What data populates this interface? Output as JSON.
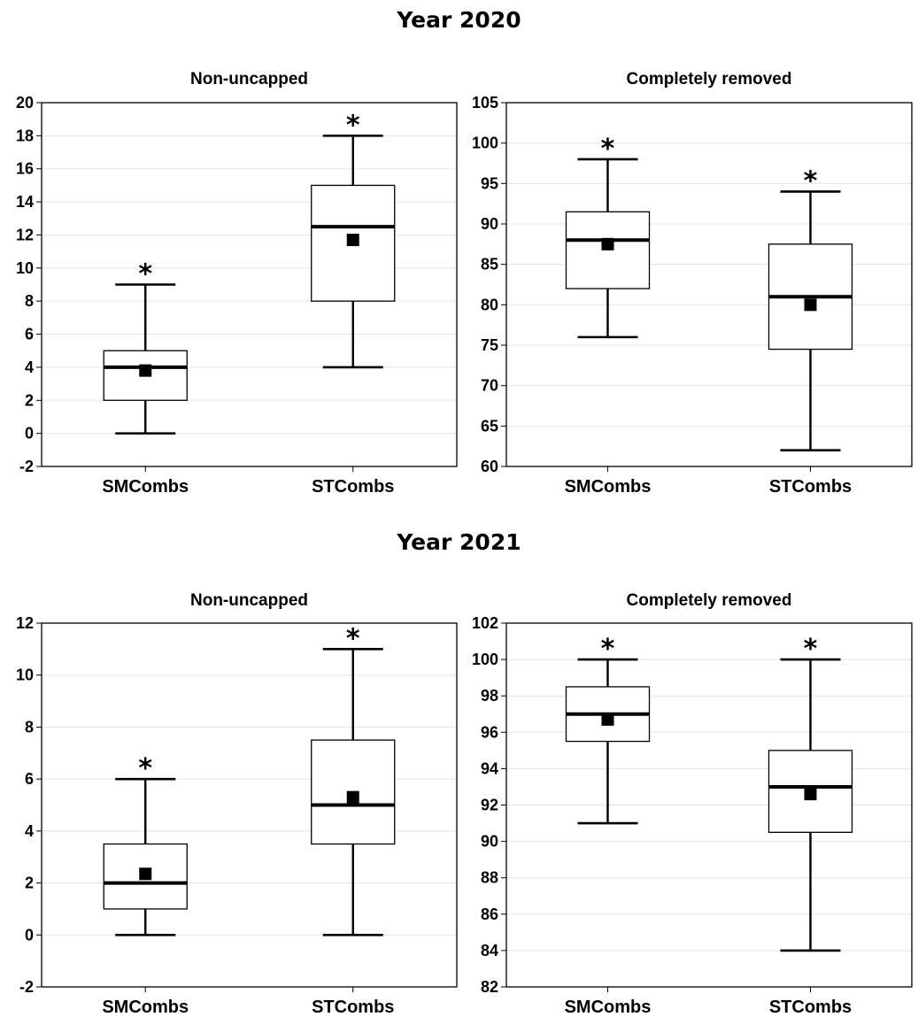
{
  "figure": {
    "year_titles": [
      "Year 2020",
      "Year 2021"
    ]
  },
  "chart_data": [
    {
      "type": "box",
      "group": "Year 2020",
      "title": "Non-uncapped",
      "xlabel": "",
      "ylabel": "",
      "ylim": [
        -2,
        20
      ],
      "yticks": [
        -2,
        0,
        2,
        4,
        6,
        8,
        10,
        12,
        14,
        16,
        18,
        20
      ],
      "grid": true,
      "categories": [
        "SMCombs",
        "STCombs"
      ],
      "boxes": [
        {
          "category": "SMCombs",
          "min": 0,
          "q1": 2,
          "median": 4,
          "q3": 5,
          "max": 9,
          "mean": 3.8,
          "marker": "*"
        },
        {
          "category": "STCombs",
          "min": 4,
          "q1": 8,
          "median": 12.5,
          "q3": 15,
          "max": 18,
          "mean": 11.7,
          "marker": "*"
        }
      ]
    },
    {
      "type": "box",
      "group": "Year 2020",
      "title": "Completely removed",
      "xlabel": "",
      "ylabel": "",
      "ylim": [
        60,
        105
      ],
      "yticks": [
        60,
        65,
        70,
        75,
        80,
        85,
        90,
        95,
        100,
        105
      ],
      "grid": true,
      "categories": [
        "SMCombs",
        "STCombs"
      ],
      "boxes": [
        {
          "category": "SMCombs",
          "min": 76,
          "q1": 82,
          "median": 88,
          "q3": 91.5,
          "max": 98,
          "mean": 87.5,
          "marker": "*"
        },
        {
          "category": "STCombs",
          "min": 62,
          "q1": 74.5,
          "median": 81,
          "q3": 87.5,
          "max": 94,
          "mean": 80,
          "marker": "*"
        }
      ]
    },
    {
      "type": "box",
      "group": "Year 2021",
      "title": "Non-uncapped",
      "xlabel": "",
      "ylabel": "",
      "ylim": [
        -2,
        12
      ],
      "yticks": [
        -2,
        0,
        2,
        4,
        6,
        8,
        10,
        12
      ],
      "grid": true,
      "categories": [
        "SMCombs",
        "STCombs"
      ],
      "boxes": [
        {
          "category": "SMCombs",
          "min": 0,
          "q1": 1,
          "median": 2,
          "q3": 3.5,
          "max": 6,
          "mean": 2.35,
          "marker": "*"
        },
        {
          "category": "STCombs",
          "min": 0,
          "q1": 3.5,
          "median": 5,
          "q3": 7.5,
          "max": 11,
          "mean": 5.3,
          "marker": "*"
        }
      ]
    },
    {
      "type": "box",
      "group": "Year 2021",
      "title": "Completely removed",
      "xlabel": "",
      "ylabel": "",
      "ylim": [
        82,
        102
      ],
      "yticks": [
        82,
        84,
        86,
        88,
        90,
        92,
        94,
        96,
        98,
        100,
        102
      ],
      "grid": true,
      "categories": [
        "SMCombs",
        "STCombs"
      ],
      "boxes": [
        {
          "category": "SMCombs",
          "min": 91,
          "q1": 95.5,
          "median": 97,
          "q3": 98.5,
          "max": 100,
          "mean": 96.7,
          "marker": "*"
        },
        {
          "category": "STCombs",
          "min": 84,
          "q1": 90.5,
          "median": 93,
          "q3": 95,
          "max": 100,
          "mean": 92.6,
          "marker": "*"
        }
      ]
    }
  ]
}
